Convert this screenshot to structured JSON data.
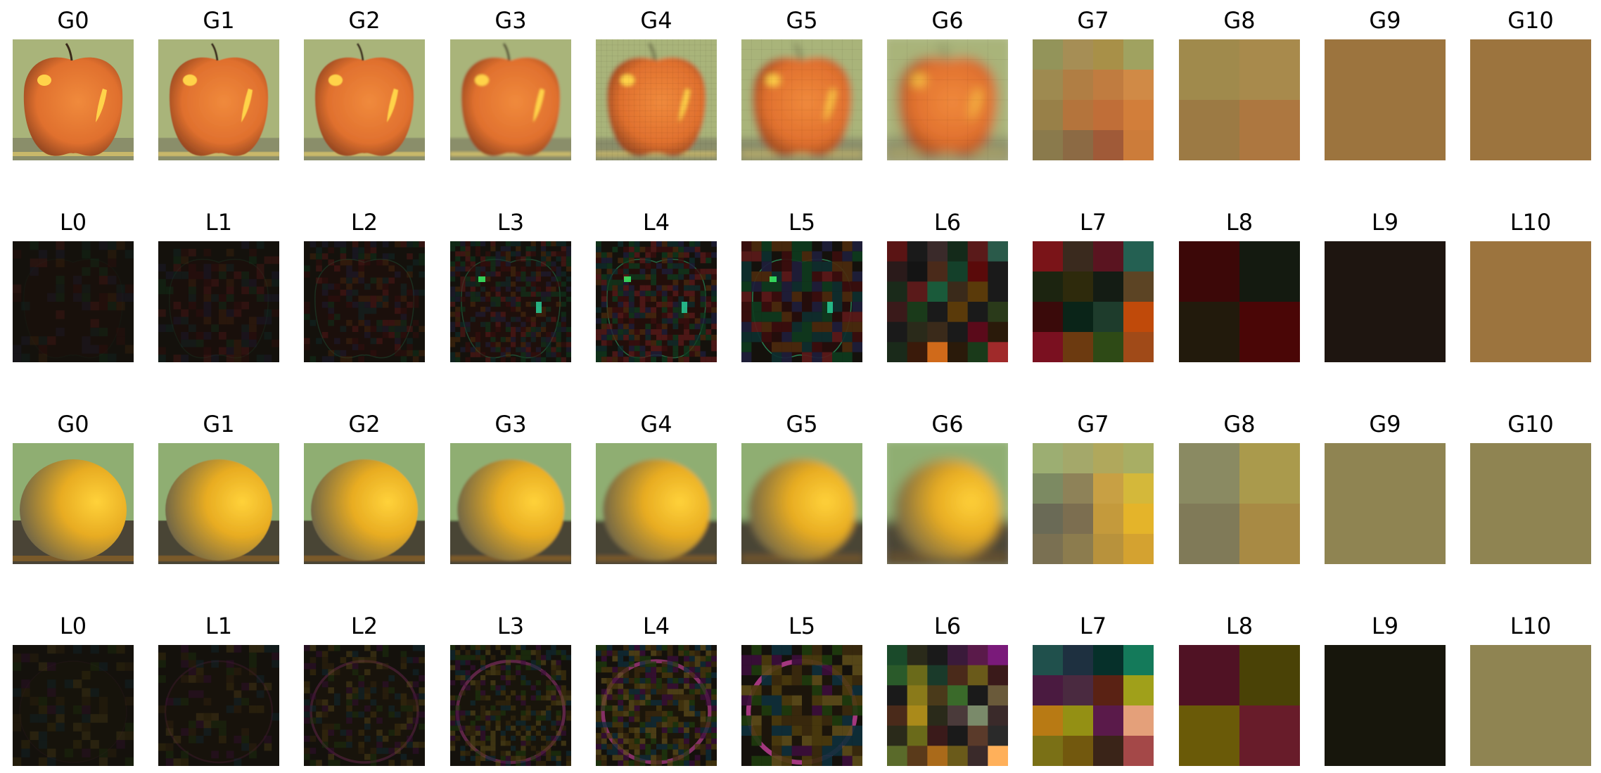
{
  "figure": {
    "rows": [
      {
        "name": "apple-gaussian",
        "labels": [
          "G0",
          "G1",
          "G2",
          "G3",
          "G4",
          "G5",
          "G6",
          "G7",
          "G8",
          "G9",
          "G10"
        ],
        "subject": "apple",
        "kind": "gaussian"
      },
      {
        "name": "apple-laplacian",
        "labels": [
          "L0",
          "L1",
          "L2",
          "L3",
          "L4",
          "L5",
          "L6",
          "L7",
          "L8",
          "L9",
          "L10"
        ],
        "subject": "apple",
        "kind": "laplacian"
      },
      {
        "name": "orange-gaussian",
        "labels": [
          "G0",
          "G1",
          "G2",
          "G3",
          "G4",
          "G5",
          "G6",
          "G7",
          "G8",
          "G9",
          "G10"
        ],
        "subject": "orange",
        "kind": "gaussian"
      },
      {
        "name": "orange-laplacian",
        "labels": [
          "L0",
          "L1",
          "L2",
          "L3",
          "L4",
          "L5",
          "L6",
          "L7",
          "L8",
          "L9",
          "L10"
        ],
        "subject": "orange",
        "kind": "laplacian"
      }
    ],
    "colors": {
      "apple_background": "#a9b47a",
      "apple_fruit": "#e0702e",
      "apple_highlight": "#ffd34a",
      "apple_flat": "#9c743e",
      "orange_background": "#8fae72",
      "orange_fruit": "#e8ac22",
      "orange_shadow": "#6d6448",
      "orange_flat": "#8f8452",
      "laplacian_dark": "#14110c"
    },
    "blocks": {
      "apple_g7": [
        [
          "#93945a",
          "#a68e55",
          "#a89048",
          "#a0a260"
        ],
        [
          "#9e8a50",
          "#b07e44",
          "#c07c40",
          "#d08a46"
        ],
        [
          "#988048",
          "#b4743c",
          "#c06e38",
          "#d27e3a"
        ],
        [
          "#8a7a4c",
          "#8c6a44",
          "#a05a38",
          "#cc7c3a"
        ]
      ],
      "apple_g8": [
        [
          "#a08a4c",
          "#a88a4c"
        ],
        [
          "#9c7a44",
          "#ad7740"
        ]
      ],
      "apple_l7": [
        [
          "#7a1418",
          "#3a2a1e",
          "#5a1420",
          "#246052"
        ],
        [
          "#1c2410",
          "#2e2a0c",
          "#141c14",
          "#5c4424"
        ],
        [
          "#3a0a0a",
          "#0a2418",
          "#1e3c2c",
          "#c04a0a"
        ],
        [
          "#7a1020",
          "#6c3a10",
          "#2e4a16",
          "#a04a18"
        ]
      ],
      "apple_l8": [
        [
          "#3c0808",
          "#141a10"
        ],
        [
          "#221a0c",
          "#4a0606"
        ]
      ],
      "apple_l9": "#1e1510",
      "apple_l6": [
        [
          "#5a1414",
          "#1a1a1a",
          "#3a2a2a",
          "#142a1a",
          "#5a1a1a",
          "#2a5a4a"
        ],
        [
          "#2a1a1a",
          "#141414",
          "#4a2a1a",
          "#14402a",
          "#5a0a0a",
          "#1a1a1a"
        ],
        [
          "#1a2a1a",
          "#5a1a1a",
          "#1a5a3a",
          "#3a2a1a",
          "#5a3a0a",
          "#1a1a1a"
        ],
        [
          "#3a1a1a",
          "#1a3a1a",
          "#1a1a1a",
          "#5a3a0a",
          "#1a1a1a",
          "#2a3a1a"
        ],
        [
          "#1a1a1a",
          "#2a2a1a",
          "#3a2a1a",
          "#1a1a1a",
          "#5a0a1a",
          "#2a1a0a"
        ],
        [
          "#1a2a1a",
          "#3a1a0a",
          "#d06a1a",
          "#2a1a0a",
          "#1a3a1a",
          "#a02a2a"
        ]
      ],
      "orange_g7": [
        [
          "#9cae72",
          "#a4a86a",
          "#b0a85c",
          "#a8ae64"
        ],
        [
          "#7c8a62",
          "#8e8258",
          "#c8a044",
          "#d4b83a"
        ],
        [
          "#6a6a56",
          "#7c6e50",
          "#c49a3c",
          "#e4b42a"
        ],
        [
          "#7a7052",
          "#8c7c4e",
          "#b8923c",
          "#d4a230"
        ]
      ],
      "orange_g8": [
        [
          "#8a8a62",
          "#aa9a4c"
        ],
        [
          "#807a58",
          "#a88a44"
        ]
      ],
      "orange_l7": [
        [
          "#20504c",
          "#1e3040",
          "#06302a",
          "#147a5a"
        ],
        [
          "#4a1a40",
          "#4a2a40",
          "#5a2214",
          "#a0a01a"
        ],
        [
          "#b87a14",
          "#949014",
          "#5a1a4a",
          "#e4a07a"
        ],
        [
          "#7a7016",
          "#72580e",
          "#3a2418",
          "#a44848"
        ]
      ],
      "orange_l8": [
        [
          "#501224",
          "#4a4206"
        ],
        [
          "#6a5a08",
          "#681c2a"
        ]
      ],
      "orange_l9": "#17160c",
      "orange_l6": [
        [
          "#1a4a2a",
          "#2a2a1a",
          "#1a1a1a",
          "#3a1a3a",
          "#5a1a4a",
          "#7a1a7a"
        ],
        [
          "#2a5a2a",
          "#6a6a1a",
          "#1a3a2a",
          "#4a2a1a",
          "#6a5a1a",
          "#3a1a1a"
        ],
        [
          "#1a1a1a",
          "#8a7a1a",
          "#4a3a1a",
          "#3a6a2a",
          "#1a1a1a",
          "#6a5a3a"
        ],
        [
          "#4a2a1a",
          "#aa8a1a",
          "#2a2a1a",
          "#4a3a3a",
          "#7a8a6a",
          "#3a2a2a"
        ],
        [
          "#2a2a1a",
          "#6a6a1a",
          "#3a1a1a",
          "#1a1a1a",
          "#5a3a2a",
          "#2a2a2a"
        ],
        [
          "#5a6a2a",
          "#5a3a1a",
          "#aa6a1a",
          "#6a5a1a",
          "#3a2a2a",
          "#ffb05a"
        ]
      ]
    }
  }
}
